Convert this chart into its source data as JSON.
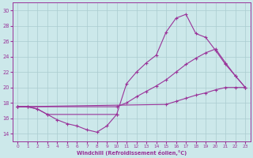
{
  "xlabel": "Windchill (Refroidissement éolien,°C)",
  "xlim": [
    -0.5,
    23.5
  ],
  "ylim": [
    13,
    31
  ],
  "yticks": [
    14,
    16,
    18,
    20,
    22,
    24,
    26,
    28,
    30
  ],
  "xticks": [
    0,
    1,
    2,
    3,
    4,
    5,
    6,
    7,
    8,
    9,
    10,
    11,
    12,
    13,
    14,
    15,
    16,
    17,
    18,
    19,
    20,
    21,
    22,
    23
  ],
  "bg": "#cce8ea",
  "grid_color": "#aaccd0",
  "lc": "#993399",
  "curve1_x": [
    0,
    1,
    2,
    3,
    4,
    5,
    6,
    7,
    8,
    9,
    10
  ],
  "curve1_y": [
    17.5,
    17.5,
    17.2,
    16.5,
    15.8,
    15.3,
    15.0,
    14.5,
    14.2,
    15.0,
    16.5
  ],
  "curve2_x": [
    0,
    1,
    2,
    3,
    10,
    11,
    12,
    13,
    14,
    15,
    16,
    17,
    18,
    19,
    20,
    21,
    22,
    23
  ],
  "curve2_y": [
    17.5,
    17.5,
    17.2,
    16.5,
    16.5,
    20.5,
    22.0,
    23.2,
    24.2,
    27.2,
    29.0,
    29.5,
    27.0,
    26.5,
    24.8,
    23.0,
    21.5,
    20.0
  ],
  "curve3_x": [
    0,
    15,
    16,
    17,
    18,
    19,
    20,
    21,
    22,
    23
  ],
  "curve3_y": [
    17.5,
    17.8,
    18.2,
    18.6,
    19.0,
    19.3,
    19.7,
    20.0,
    20.0,
    20.0
  ],
  "curve4_x": [
    0,
    10,
    11,
    12,
    13,
    14,
    15,
    16,
    17,
    18,
    19,
    20,
    21,
    22,
    23
  ],
  "curve4_y": [
    17.5,
    17.5,
    18.0,
    18.8,
    19.5,
    20.2,
    21.0,
    22.0,
    23.0,
    23.8,
    24.5,
    25.0,
    23.2,
    21.5,
    20.0
  ]
}
